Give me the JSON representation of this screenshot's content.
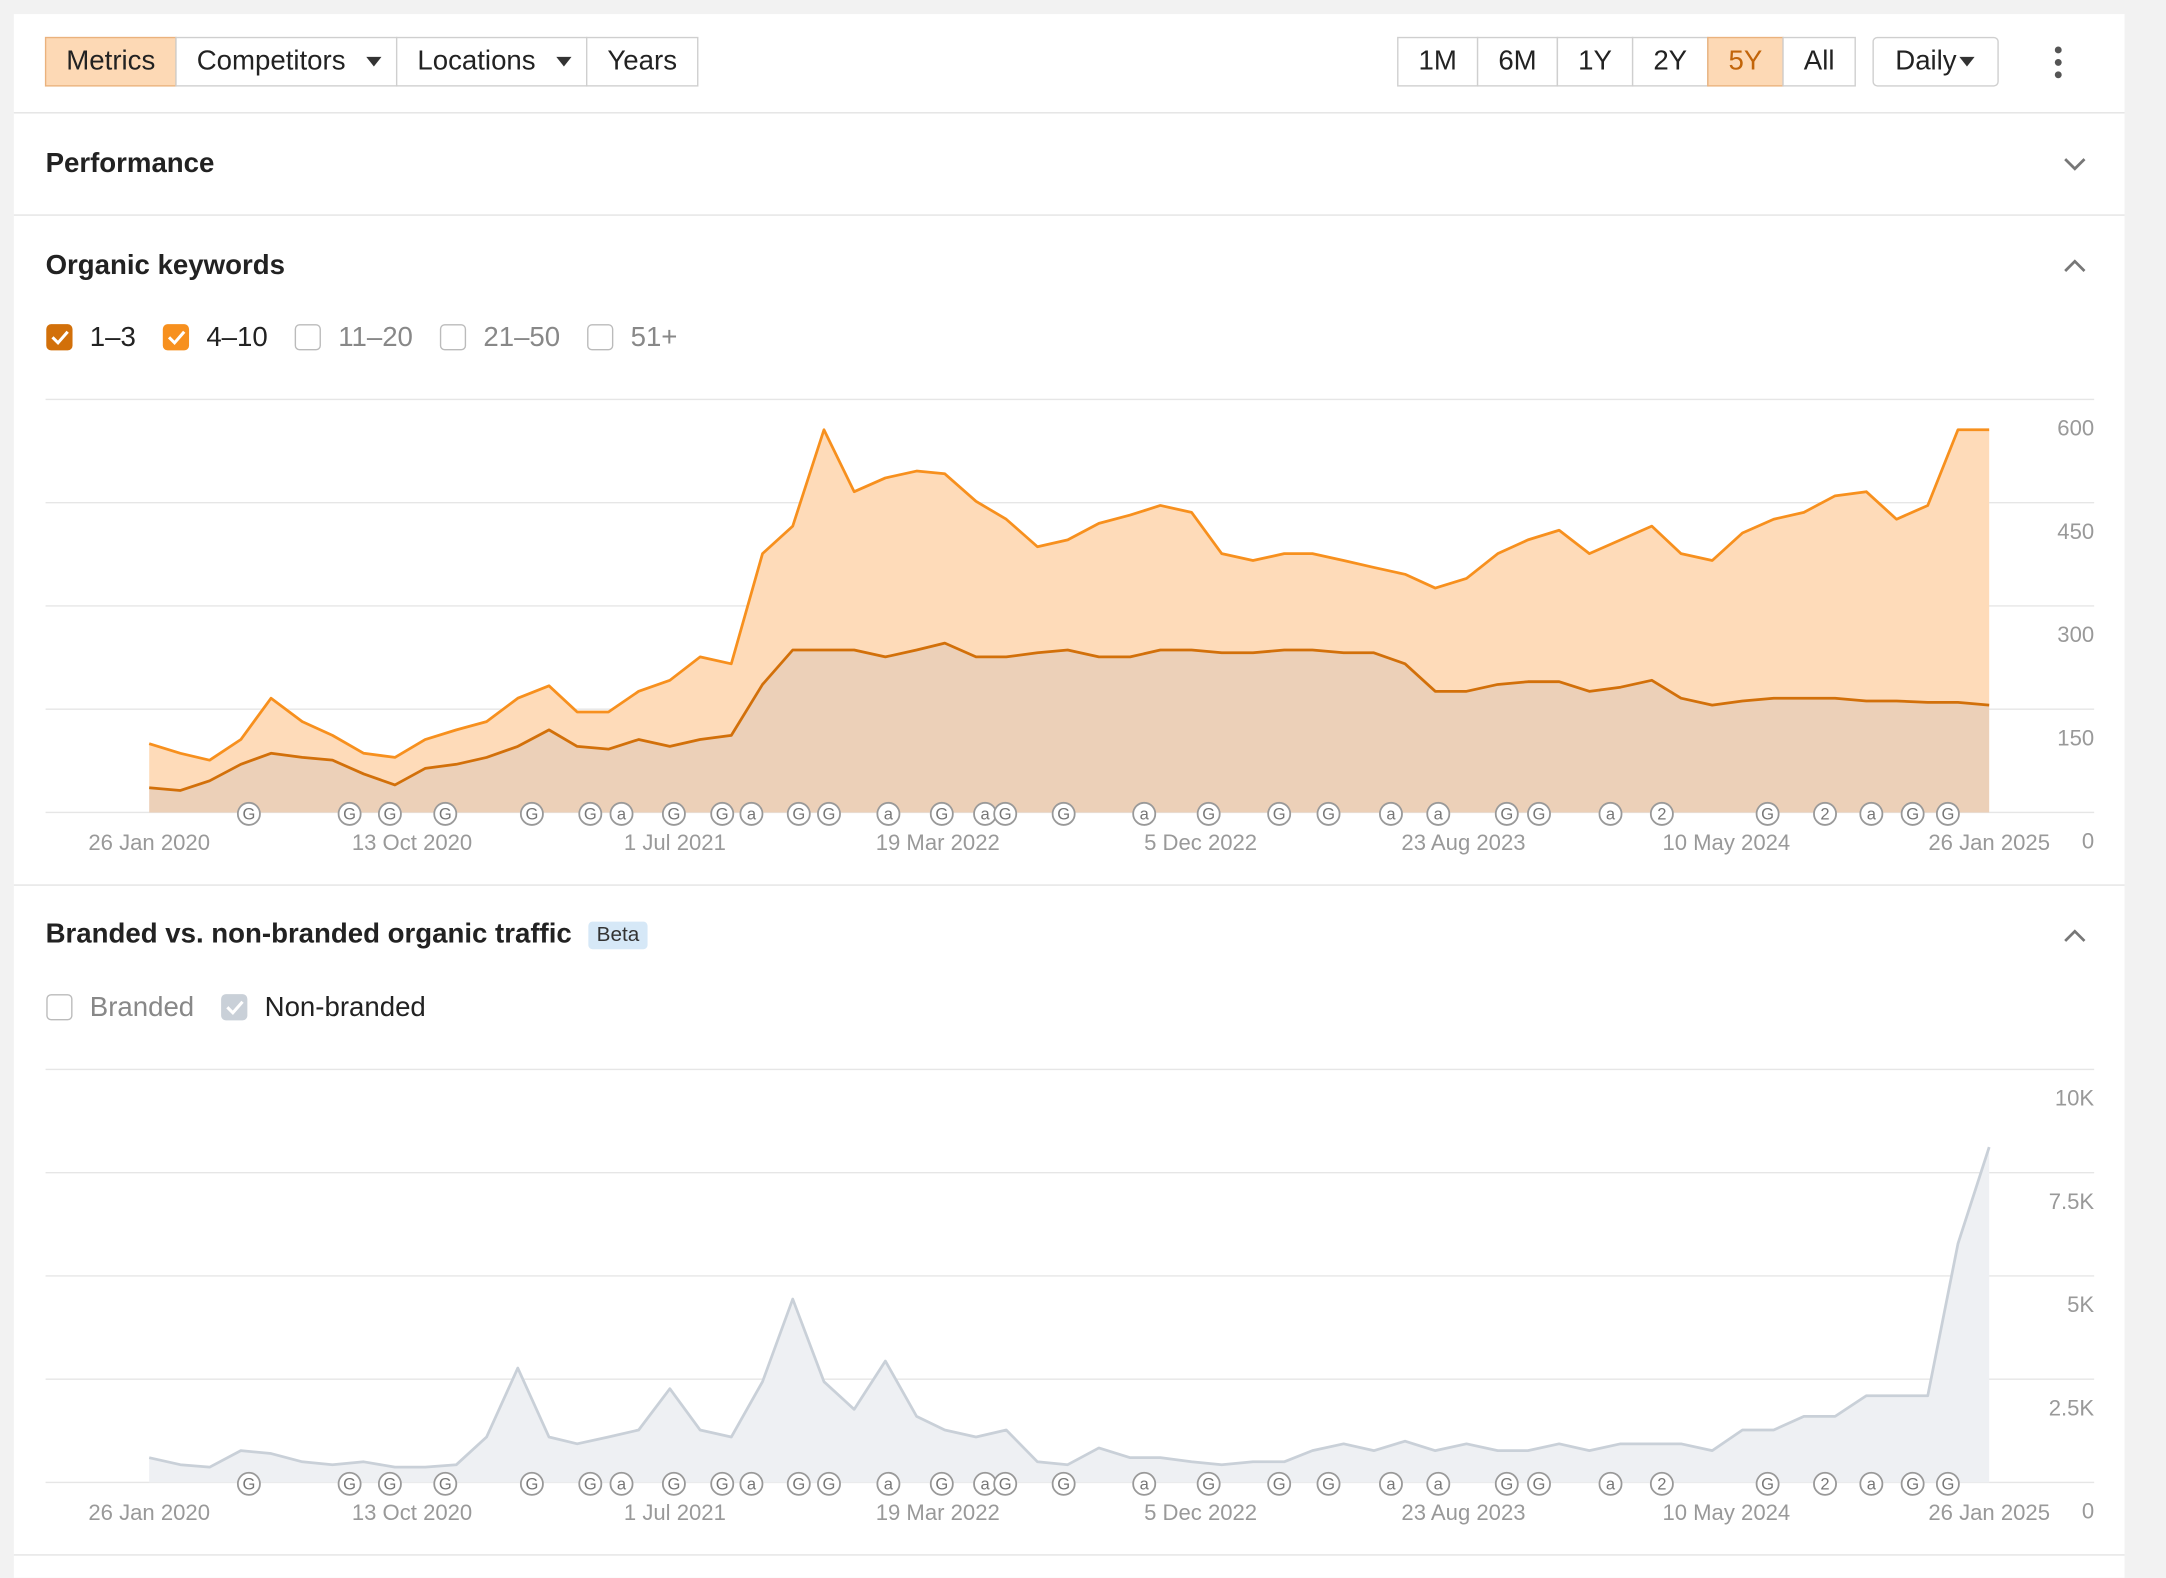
{
  "toolbar": {
    "tabs": [
      {
        "label": "Metrics",
        "active": true
      },
      {
        "label": "Competitors",
        "dropdown": true
      },
      {
        "label": "Locations",
        "dropdown": true
      },
      {
        "label": "Years"
      }
    ],
    "ranges": [
      {
        "label": "1M"
      },
      {
        "label": "6M"
      },
      {
        "label": "1Y"
      },
      {
        "label": "2Y"
      },
      {
        "label": "5Y",
        "active": true
      },
      {
        "label": "All"
      }
    ],
    "interval": "Daily"
  },
  "sections": {
    "performance": "Performance"
  },
  "chart_data": [
    {
      "type": "area",
      "stacked": true,
      "title": "Organic keywords",
      "x": [
        "2020-01-26",
        "2020-02-26",
        "2020-03-26",
        "2020-04-26",
        "2020-05-26",
        "2020-06-26",
        "2020-07-26",
        "2020-08-26",
        "2020-09-26",
        "2020-10-26",
        "2020-11-26",
        "2020-12-26",
        "2021-01-26",
        "2021-02-26",
        "2021-03-26",
        "2021-04-26",
        "2021-05-26",
        "2021-06-26",
        "2021-07-26",
        "2021-08-26",
        "2021-09-26",
        "2021-10-26",
        "2021-11-26",
        "2021-12-26",
        "2022-01-26",
        "2022-02-26",
        "2022-03-26",
        "2022-04-26",
        "2022-05-26",
        "2022-06-26",
        "2022-07-26",
        "2022-08-26",
        "2022-09-26",
        "2022-10-26",
        "2022-11-26",
        "2022-12-26",
        "2023-01-26",
        "2023-02-26",
        "2023-03-26",
        "2023-04-26",
        "2023-05-26",
        "2023-06-26",
        "2023-07-26",
        "2023-08-26",
        "2023-09-26",
        "2023-10-26",
        "2023-11-26",
        "2023-12-26",
        "2024-01-26",
        "2024-02-26",
        "2024-03-26",
        "2024-04-26",
        "2024-05-26",
        "2024-06-26",
        "2024-07-26",
        "2024-08-26",
        "2024-09-26",
        "2024-10-26",
        "2024-11-26",
        "2024-12-26",
        "2025-01-26"
      ],
      "series": [
        {
          "name": "1–3",
          "checked": true,
          "color": "#d2700a",
          "fill": "#ecd0b8",
          "values": [
            36,
            32,
            46,
            70,
            86,
            80,
            76,
            56,
            40,
            64,
            70,
            80,
            96,
            120,
            96,
            92,
            106,
            96,
            106,
            112,
            186,
            236,
            236,
            236,
            226,
            236,
            246,
            226,
            226,
            232,
            236,
            226,
            226,
            236,
            236,
            232,
            232,
            236,
            236,
            232,
            232,
            216,
            176,
            176,
            186,
            190,
            190,
            176,
            182,
            192,
            166,
            156,
            162,
            166,
            166,
            166,
            162,
            162,
            160,
            160,
            156
          ]
        },
        {
          "name": "4–10",
          "checked": true,
          "color": "#f7901e",
          "fill": "#fedbb9",
          "values": [
            64,
            54,
            30,
            36,
            80,
            52,
            36,
            30,
            40,
            42,
            50,
            52,
            70,
            64,
            50,
            54,
            70,
            96,
            120,
            104,
            190,
            180,
            320,
            230,
            260,
            260,
            246,
            226,
            200,
            154,
            160,
            194,
            206,
            210,
            200,
            144,
            134,
            140,
            140,
            134,
            124,
            130,
            150,
            164,
            190,
            206,
            220,
            200,
            214,
            224,
            210,
            210,
            244,
            260,
            270,
            294,
            304,
            264,
            286,
            396,
            400
          ]
        },
        {
          "name": "11–20",
          "checked": false
        },
        {
          "name": "21–50",
          "checked": false
        },
        {
          "name": "51+",
          "checked": false
        }
      ],
      "xlim": [
        "2020-01-26",
        "2025-01-26"
      ],
      "xticks": [
        {
          "value": "2020-01-26",
          "label": "26 Jan 2020"
        },
        {
          "value": "2020-10-13",
          "label": "13 Oct 2020"
        },
        {
          "value": "2021-07-01",
          "label": "1 Jul 2021"
        },
        {
          "value": "2022-03-19",
          "label": "19 Mar 2022"
        },
        {
          "value": "2022-12-05",
          "label": "5 Dec 2022"
        },
        {
          "value": "2023-08-23",
          "label": "23 Aug 2023"
        },
        {
          "value": "2024-05-10",
          "label": "10 May 2024"
        },
        {
          "value": "2025-01-26",
          "label": "26 Jan 2025"
        }
      ],
      "ylim": [
        0,
        600
      ],
      "yticks": [
        0,
        150,
        300,
        450,
        600
      ],
      "grid": true,
      "events": [
        {
          "x": "2020-05-04",
          "label": "G"
        },
        {
          "x": "2020-08-12",
          "label": "G"
        },
        {
          "x": "2020-09-21",
          "label": "G"
        },
        {
          "x": "2020-11-15",
          "label": "G"
        },
        {
          "x": "2021-02-09",
          "label": "G"
        },
        {
          "x": "2021-04-08",
          "label": "G"
        },
        {
          "x": "2021-05-09",
          "label": "a"
        },
        {
          "x": "2021-06-30",
          "label": "G"
        },
        {
          "x": "2021-08-17",
          "label": "G"
        },
        {
          "x": "2021-09-15",
          "label": "a"
        },
        {
          "x": "2021-11-01",
          "label": "G"
        },
        {
          "x": "2021-12-01",
          "label": "G"
        },
        {
          "x": "2022-01-29",
          "label": "a"
        },
        {
          "x": "2022-03-23",
          "label": "G"
        },
        {
          "x": "2022-05-05",
          "label": "a"
        },
        {
          "x": "2022-05-25",
          "label": "G"
        },
        {
          "x": "2022-07-22",
          "label": "G"
        },
        {
          "x": "2022-10-10",
          "label": "a"
        },
        {
          "x": "2022-12-13",
          "label": "G"
        },
        {
          "x": "2023-02-21",
          "label": "G"
        },
        {
          "x": "2023-04-11",
          "label": "G"
        },
        {
          "x": "2023-06-12",
          "label": "a"
        },
        {
          "x": "2023-07-29",
          "label": "a"
        },
        {
          "x": "2023-10-05",
          "label": "G"
        },
        {
          "x": "2023-11-06",
          "label": "G"
        },
        {
          "x": "2024-01-16",
          "label": "a"
        },
        {
          "x": "2024-03-07",
          "label": "2"
        },
        {
          "x": "2024-06-20",
          "label": "G"
        },
        {
          "x": "2024-08-16",
          "label": "2"
        },
        {
          "x": "2024-10-01",
          "label": "a"
        },
        {
          "x": "2024-11-11",
          "label": "G"
        },
        {
          "x": "2024-12-16",
          "label": "G"
        }
      ]
    },
    {
      "type": "area",
      "stacked": true,
      "title": "Branded vs. non-branded organic traffic",
      "badge": "Beta",
      "x": [
        "2020-01-26",
        "2020-02-26",
        "2020-03-26",
        "2020-04-26",
        "2020-05-26",
        "2020-06-26",
        "2020-07-26",
        "2020-08-26",
        "2020-09-26",
        "2020-10-26",
        "2020-11-26",
        "2020-12-26",
        "2021-01-26",
        "2021-02-26",
        "2021-03-26",
        "2021-04-26",
        "2021-05-26",
        "2021-06-26",
        "2021-07-26",
        "2021-08-26",
        "2021-09-26",
        "2021-10-26",
        "2021-11-26",
        "2021-12-26",
        "2022-01-26",
        "2022-02-26",
        "2022-03-26",
        "2022-04-26",
        "2022-05-26",
        "2022-06-26",
        "2022-07-26",
        "2022-08-26",
        "2022-09-26",
        "2022-10-26",
        "2022-11-26",
        "2022-12-26",
        "2023-01-26",
        "2023-02-26",
        "2023-03-26",
        "2023-04-26",
        "2023-05-26",
        "2023-06-26",
        "2023-07-26",
        "2023-08-26",
        "2023-09-26",
        "2023-10-26",
        "2023-11-26",
        "2023-12-26",
        "2024-01-26",
        "2024-02-26",
        "2024-03-26",
        "2024-04-26",
        "2024-05-26",
        "2024-06-26",
        "2024-07-26",
        "2024-08-26",
        "2024-09-26",
        "2024-10-26",
        "2024-11-26",
        "2024-12-26",
        "2025-01-26"
      ],
      "series": [
        {
          "name": "Branded",
          "checked": false
        },
        {
          "name": "Non-branded",
          "checked": true,
          "color": "#c9d0d8",
          "fill": "#eef0f3",
          "values": [
            600,
            430,
            370,
            770,
            700,
            500,
            430,
            500,
            370,
            370,
            430,
            1100,
            2770,
            1100,
            935,
            1100,
            1270,
            2270,
            1270,
            1100,
            2440,
            4440,
            2440,
            1770,
            2940,
            1600,
            1270,
            1100,
            1270,
            500,
            430,
            835,
            600,
            600,
            500,
            430,
            500,
            500,
            770,
            935,
            770,
            1000,
            770,
            935,
            770,
            770,
            935,
            770,
            935,
            935,
            935,
            770,
            1270,
            1270,
            1600,
            1600,
            2100,
            2100,
            2100,
            5780,
            8120
          ]
        }
      ],
      "xlim": [
        "2020-01-26",
        "2025-01-26"
      ],
      "xticks": [
        {
          "value": "2020-01-26",
          "label": "26 Jan 2020"
        },
        {
          "value": "2020-10-13",
          "label": "13 Oct 2020"
        },
        {
          "value": "2021-07-01",
          "label": "1 Jul 2021"
        },
        {
          "value": "2022-03-19",
          "label": "19 Mar 2022"
        },
        {
          "value": "2022-12-05",
          "label": "5 Dec 2022"
        },
        {
          "value": "2023-08-23",
          "label": "23 Aug 2023"
        },
        {
          "value": "2024-05-10",
          "label": "10 May 2024"
        },
        {
          "value": "2025-01-26",
          "label": "26 Jan 2025"
        }
      ],
      "ylim": [
        0,
        10000
      ],
      "yticks": [
        0,
        {
          "value": 2500,
          "label": "2.5K"
        },
        {
          "value": 5000,
          "label": "5K"
        },
        {
          "value": 7500,
          "label": "7.5K"
        },
        {
          "value": 10000,
          "label": "10K"
        }
      ],
      "grid": true,
      "events": [
        {
          "x": "2020-05-04",
          "label": "G"
        },
        {
          "x": "2020-08-12",
          "label": "G"
        },
        {
          "x": "2020-09-21",
          "label": "G"
        },
        {
          "x": "2020-11-15",
          "label": "G"
        },
        {
          "x": "2021-02-09",
          "label": "G"
        },
        {
          "x": "2021-04-08",
          "label": "G"
        },
        {
          "x": "2021-05-09",
          "label": "a"
        },
        {
          "x": "2021-06-30",
          "label": "G"
        },
        {
          "x": "2021-08-17",
          "label": "G"
        },
        {
          "x": "2021-09-15",
          "label": "a"
        },
        {
          "x": "2021-11-01",
          "label": "G"
        },
        {
          "x": "2021-12-01",
          "label": "G"
        },
        {
          "x": "2022-01-29",
          "label": "a"
        },
        {
          "x": "2022-03-23",
          "label": "G"
        },
        {
          "x": "2022-05-05",
          "label": "a"
        },
        {
          "x": "2022-05-25",
          "label": "G"
        },
        {
          "x": "2022-07-22",
          "label": "G"
        },
        {
          "x": "2022-10-10",
          "label": "a"
        },
        {
          "x": "2022-12-13",
          "label": "G"
        },
        {
          "x": "2023-02-21",
          "label": "G"
        },
        {
          "x": "2023-04-11",
          "label": "G"
        },
        {
          "x": "2023-06-12",
          "label": "a"
        },
        {
          "x": "2023-07-29",
          "label": "a"
        },
        {
          "x": "2023-10-05",
          "label": "G"
        },
        {
          "x": "2023-11-06",
          "label": "G"
        },
        {
          "x": "2024-01-16",
          "label": "a"
        },
        {
          "x": "2024-03-07",
          "label": "2"
        },
        {
          "x": "2024-06-20",
          "label": "G"
        },
        {
          "x": "2024-08-16",
          "label": "2"
        },
        {
          "x": "2024-10-01",
          "label": "a"
        },
        {
          "x": "2024-11-11",
          "label": "G"
        },
        {
          "x": "2024-12-16",
          "label": "G"
        }
      ]
    }
  ]
}
